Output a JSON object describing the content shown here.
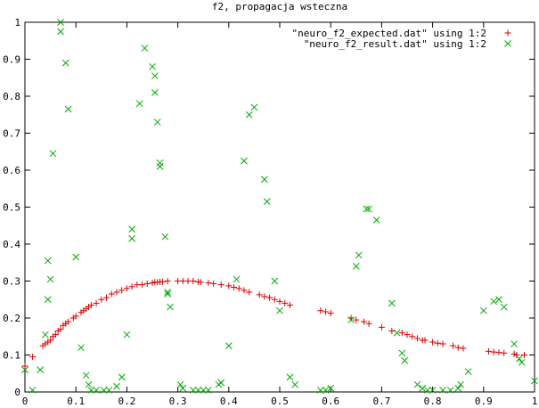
{
  "chart_data": {
    "type": "scatter",
    "title": "f2, propagacja wsteczna",
    "xlabel": "",
    "ylabel": "",
    "xlim": [
      0,
      1
    ],
    "ylim": [
      0,
      1
    ],
    "x_ticks": [
      "0",
      "0.1",
      "0.2",
      "0.3",
      "0.4",
      "0.5",
      "0.6",
      "0.7",
      "0.8",
      "0.9",
      "1"
    ],
    "y_ticks": [
      "0",
      "0.1",
      "0.2",
      "0.3",
      "0.4",
      "0.5",
      "0.6",
      "0.7",
      "0.8",
      "0.9",
      "1"
    ],
    "grid": false,
    "legend_position": "top-right",
    "series": [
      {
        "name": "\"neuro_f2_expected.dat\" using 1:2",
        "marker": "plus",
        "color": "#dd0000",
        "points": [
          [
            0.0,
            0.07
          ],
          [
            0.015,
            0.095
          ],
          [
            0.035,
            0.125
          ],
          [
            0.04,
            0.13
          ],
          [
            0.045,
            0.135
          ],
          [
            0.05,
            0.14
          ],
          [
            0.055,
            0.15
          ],
          [
            0.06,
            0.155
          ],
          [
            0.065,
            0.165
          ],
          [
            0.07,
            0.17
          ],
          [
            0.075,
            0.18
          ],
          [
            0.08,
            0.185
          ],
          [
            0.085,
            0.19
          ],
          [
            0.095,
            0.2
          ],
          [
            0.1,
            0.205
          ],
          [
            0.11,
            0.215
          ],
          [
            0.115,
            0.22
          ],
          [
            0.12,
            0.225
          ],
          [
            0.125,
            0.23
          ],
          [
            0.13,
            0.235
          ],
          [
            0.14,
            0.24
          ],
          [
            0.15,
            0.25
          ],
          [
            0.16,
            0.255
          ],
          [
            0.17,
            0.265
          ],
          [
            0.18,
            0.27
          ],
          [
            0.19,
            0.275
          ],
          [
            0.2,
            0.28
          ],
          [
            0.21,
            0.285
          ],
          [
            0.22,
            0.29
          ],
          [
            0.23,
            0.29
          ],
          [
            0.24,
            0.293
          ],
          [
            0.25,
            0.295
          ],
          [
            0.255,
            0.297
          ],
          [
            0.26,
            0.297
          ],
          [
            0.265,
            0.298
          ],
          [
            0.27,
            0.298
          ],
          [
            0.28,
            0.3
          ],
          [
            0.3,
            0.3
          ],
          [
            0.31,
            0.3
          ],
          [
            0.32,
            0.3
          ],
          [
            0.33,
            0.3
          ],
          [
            0.34,
            0.298
          ],
          [
            0.345,
            0.297
          ],
          [
            0.36,
            0.295
          ],
          [
            0.37,
            0.293
          ],
          [
            0.385,
            0.29
          ],
          [
            0.4,
            0.287
          ],
          [
            0.41,
            0.283
          ],
          [
            0.42,
            0.28
          ],
          [
            0.43,
            0.275
          ],
          [
            0.44,
            0.27
          ],
          [
            0.46,
            0.263
          ],
          [
            0.47,
            0.258
          ],
          [
            0.48,
            0.255
          ],
          [
            0.49,
            0.25
          ],
          [
            0.5,
            0.245
          ],
          [
            0.51,
            0.24
          ],
          [
            0.52,
            0.235
          ],
          [
            0.58,
            0.22
          ],
          [
            0.59,
            0.217
          ],
          [
            0.6,
            0.213
          ],
          [
            0.64,
            0.2
          ],
          [
            0.65,
            0.195
          ],
          [
            0.665,
            0.19
          ],
          [
            0.675,
            0.185
          ],
          [
            0.7,
            0.175
          ],
          [
            0.72,
            0.165
          ],
          [
            0.74,
            0.16
          ],
          [
            0.75,
            0.155
          ],
          [
            0.76,
            0.15
          ],
          [
            0.77,
            0.145
          ],
          [
            0.78,
            0.14
          ],
          [
            0.785,
            0.14
          ],
          [
            0.8,
            0.135
          ],
          [
            0.81,
            0.132
          ],
          [
            0.82,
            0.13
          ],
          [
            0.84,
            0.125
          ],
          [
            0.85,
            0.12
          ],
          [
            0.86,
            0.118
          ],
          [
            0.91,
            0.11
          ],
          [
            0.92,
            0.108
          ],
          [
            0.93,
            0.107
          ],
          [
            0.94,
            0.105
          ],
          [
            0.96,
            0.103
          ],
          [
            0.965,
            0.1
          ],
          [
            0.98,
            0.1
          ]
        ]
      },
      {
        "name": "\"neuro_f2_result.dat\" using 1:2",
        "marker": "cross",
        "color": "#00aa00",
        "points": [
          [
            0.0,
            0.06
          ],
          [
            0.015,
            0.005
          ],
          [
            0.03,
            0.06
          ],
          [
            0.04,
            0.155
          ],
          [
            0.045,
            0.25
          ],
          [
            0.045,
            0.355
          ],
          [
            0.05,
            0.305
          ],
          [
            0.055,
            0.645
          ],
          [
            0.07,
            0.975
          ],
          [
            0.07,
            1.0
          ],
          [
            0.08,
            0.89
          ],
          [
            0.085,
            0.765
          ],
          [
            0.1,
            0.365
          ],
          [
            0.11,
            0.12
          ],
          [
            0.12,
            0.045
          ],
          [
            0.125,
            0.02
          ],
          [
            0.13,
            0.005
          ],
          [
            0.14,
            0.005
          ],
          [
            0.155,
            0.005
          ],
          [
            0.165,
            0.005
          ],
          [
            0.18,
            0.015
          ],
          [
            0.19,
            0.04
          ],
          [
            0.2,
            0.155
          ],
          [
            0.21,
            0.44
          ],
          [
            0.21,
            0.415
          ],
          [
            0.225,
            0.78
          ],
          [
            0.235,
            0.93
          ],
          [
            0.25,
            0.88
          ],
          [
            0.255,
            0.855
          ],
          [
            0.255,
            0.81
          ],
          [
            0.26,
            0.73
          ],
          [
            0.265,
            0.62
          ],
          [
            0.265,
            0.61
          ],
          [
            0.275,
            0.42
          ],
          [
            0.28,
            0.27
          ],
          [
            0.28,
            0.265
          ],
          [
            0.285,
            0.23
          ],
          [
            0.305,
            0.02
          ],
          [
            0.31,
            0.01
          ],
          [
            0.33,
            0.005
          ],
          [
            0.34,
            0.005
          ],
          [
            0.35,
            0.005
          ],
          [
            0.36,
            0.005
          ],
          [
            0.38,
            0.02
          ],
          [
            0.385,
            0.025
          ],
          [
            0.4,
            0.125
          ],
          [
            0.415,
            0.305
          ],
          [
            0.43,
            0.625
          ],
          [
            0.44,
            0.75
          ],
          [
            0.45,
            0.77
          ],
          [
            0.47,
            0.575
          ],
          [
            0.475,
            0.515
          ],
          [
            0.49,
            0.3
          ],
          [
            0.5,
            0.22
          ],
          [
            0.52,
            0.04
          ],
          [
            0.53,
            0.02
          ],
          [
            0.58,
            0.005
          ],
          [
            0.59,
            0.005
          ],
          [
            0.6,
            0.01
          ],
          [
            0.64,
            0.195
          ],
          [
            0.65,
            0.34
          ],
          [
            0.655,
            0.37
          ],
          [
            0.67,
            0.495
          ],
          [
            0.675,
            0.495
          ],
          [
            0.69,
            0.465
          ],
          [
            0.72,
            0.24
          ],
          [
            0.73,
            0.16
          ],
          [
            0.74,
            0.105
          ],
          [
            0.745,
            0.085
          ],
          [
            0.77,
            0.02
          ],
          [
            0.78,
            0.01
          ],
          [
            0.79,
            0.005
          ],
          [
            0.8,
            0.005
          ],
          [
            0.82,
            0.005
          ],
          [
            0.835,
            0.005
          ],
          [
            0.85,
            0.01
          ],
          [
            0.855,
            0.02
          ],
          [
            0.87,
            0.055
          ],
          [
            0.9,
            0.22
          ],
          [
            0.92,
            0.245
          ],
          [
            0.93,
            0.25
          ],
          [
            0.94,
            0.23
          ],
          [
            0.96,
            0.13
          ],
          [
            0.97,
            0.09
          ],
          [
            0.975,
            0.08
          ],
          [
            1.0,
            0.03
          ]
        ]
      }
    ]
  }
}
